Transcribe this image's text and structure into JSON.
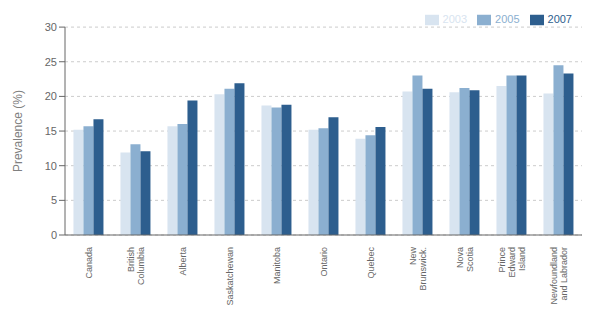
{
  "chart_data": {
    "type": "bar",
    "categories": [
      "Canada",
      "British\nColumbia",
      "Alberta",
      "Saskatchewan",
      "Manitoba",
      "Ontario",
      "Quebec",
      "New\nBrunswick.",
      "Nova\nScotia",
      "Prince\nEdward\nIsland",
      "Newfoundland\nand Labrador"
    ],
    "series": [
      {
        "name": "2003",
        "color": "#d8e4f0",
        "values": [
          15.2,
          11.9,
          15.7,
          20.3,
          18.7,
          15.2,
          13.9,
          20.7,
          20.6,
          21.5,
          20.4
        ]
      },
      {
        "name": "2005",
        "color": "#8bafd0",
        "values": [
          15.7,
          13.1,
          16.0,
          21.1,
          18.4,
          15.4,
          14.4,
          23.0,
          21.2,
          23.0,
          24.5
        ]
      },
      {
        "name": "2007",
        "color": "#2d5e8e",
        "values": [
          16.7,
          12.1,
          19.4,
          21.9,
          18.8,
          17.0,
          15.6,
          21.1,
          20.9,
          23.0,
          23.3
        ]
      }
    ],
    "ylabel": "Prevalence (%)",
    "ylim": [
      0,
      30
    ],
    "yticks": [
      0,
      5,
      10,
      15,
      20,
      25,
      30
    ],
    "grid": true,
    "legend": "upper right"
  }
}
